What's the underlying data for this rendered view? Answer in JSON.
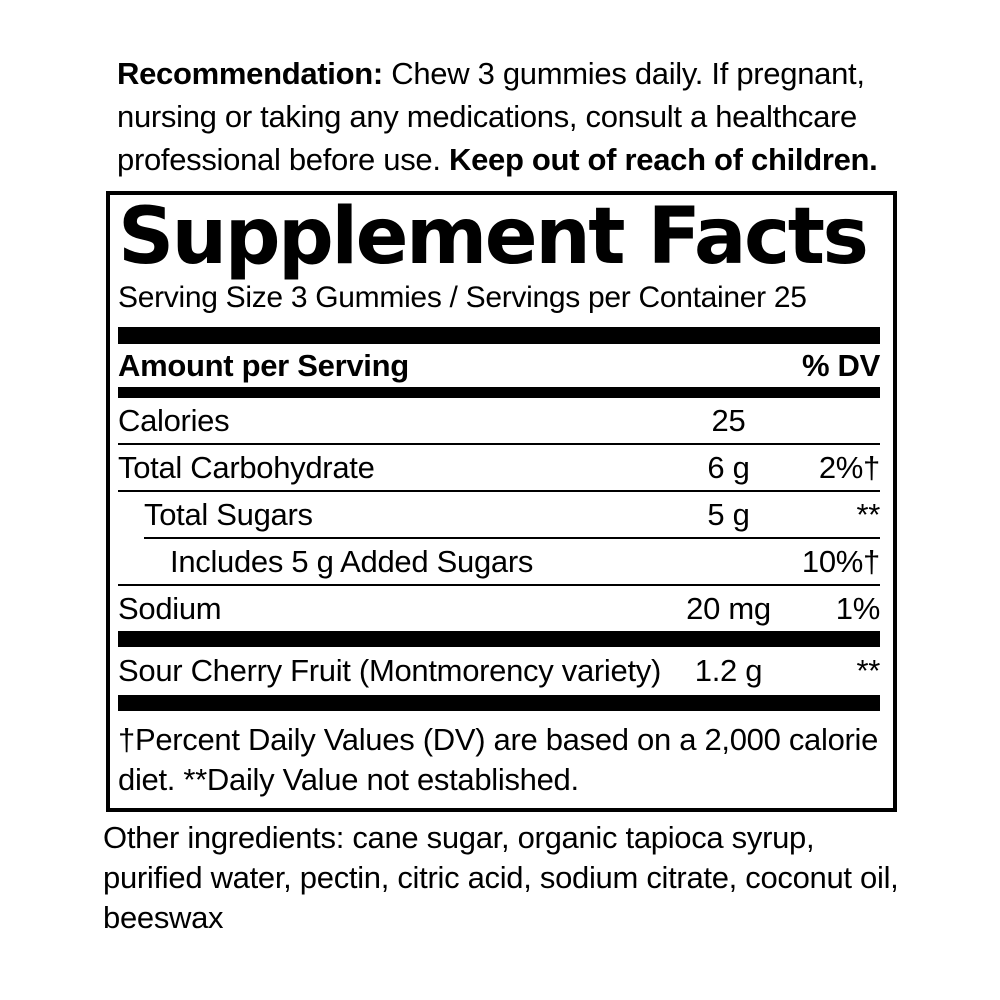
{
  "recommendation": {
    "bold_prefix": "Recommendation:",
    "line1_rest": " Chew 3 gummies daily. If pregnant,",
    "line2": "nursing or taking any medications, consult a healthcare",
    "line3_rest": "professional before use. ",
    "bold_suffix": "Keep out of reach of children."
  },
  "supplement_facts": {
    "title": "Supplement Facts",
    "serving_info": "Serving Size 3 Gummies / Servings per Container 25",
    "column_headers": {
      "amount": "Amount per Serving",
      "dv": "% DV"
    },
    "rows": [
      {
        "label": "Calories",
        "amount": "25",
        "dv": ""
      },
      {
        "label": "Total Carbohydrate",
        "amount": "6 g",
        "dv": "2%†"
      },
      {
        "label": "Total Sugars",
        "amount": "5 g",
        "dv": "**"
      },
      {
        "label": "Includes 5 g Added Sugars",
        "amount": "",
        "dv": "10%†"
      },
      {
        "label": "Sodium",
        "amount": "20 mg",
        "dv": "1%"
      }
    ],
    "botanical_row": {
      "label": "Sour Cherry Fruit (Montmorency variety)",
      "amount": "1.2 g",
      "dv": "**"
    },
    "footnote_lines": [
      "†Percent Daily Values (DV) are based on a 2,000 calorie",
      "diet. **Daily Value not established."
    ]
  },
  "other_ingredients": {
    "lines": [
      "Other ingredients: cane sugar, organic tapioca syrup,",
      "purified water, pectin, citric acid, sodium citrate, coconut oil,",
      "beeswax"
    ]
  },
  "colors": {
    "text": "#000000",
    "background": "#ffffff",
    "rule": "#000000"
  }
}
